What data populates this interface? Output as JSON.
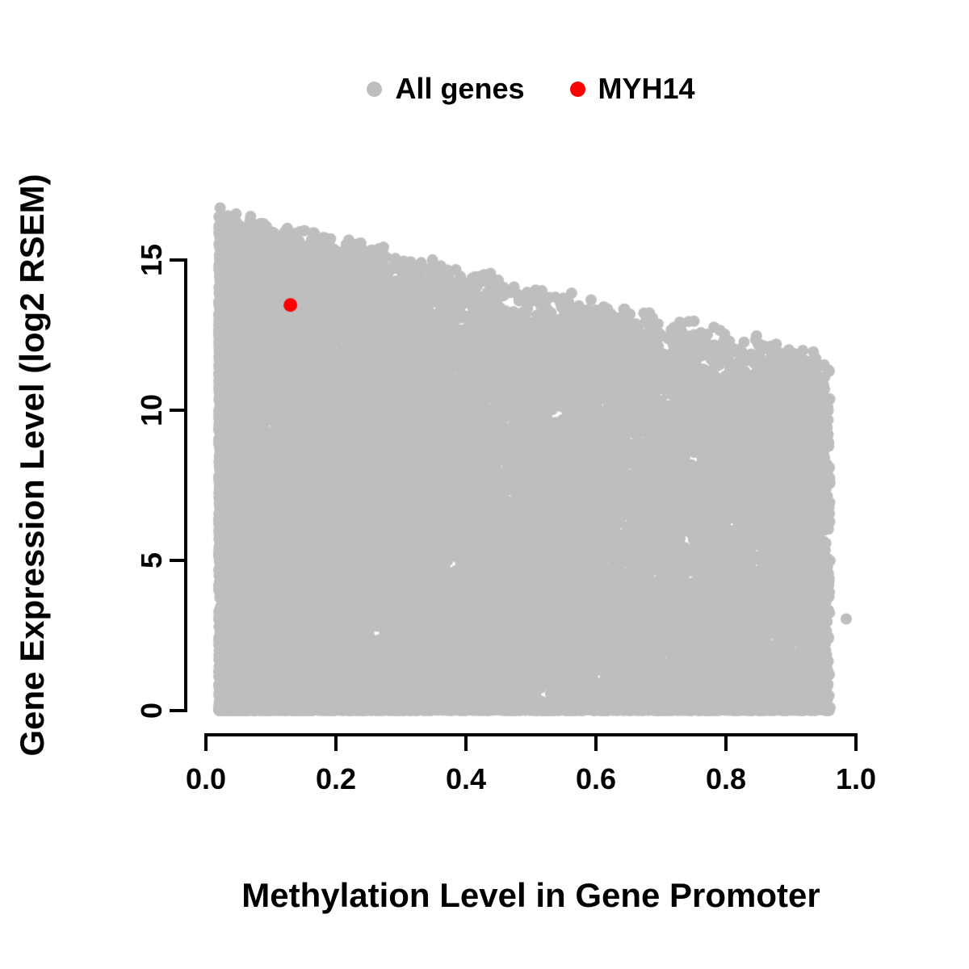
{
  "chart_data": {
    "type": "scatter",
    "title": "",
    "xlabel": "Methylation Level in Gene Promoter",
    "ylabel": "Gene Expression Level (log2 RSEM)",
    "xlim": [
      0,
      1
    ],
    "ylim": [
      0,
      17
    ],
    "grid": false,
    "legend_position": "top-center",
    "axis_color": "#000000",
    "x_ticks": [
      {
        "value": 0.0,
        "label": "0.0"
      },
      {
        "value": 0.2,
        "label": "0.2"
      },
      {
        "value": 0.4,
        "label": "0.4"
      },
      {
        "value": 0.6,
        "label": "0.6"
      },
      {
        "value": 0.8,
        "label": "0.8"
      },
      {
        "value": 1.0,
        "label": "1.0"
      }
    ],
    "y_ticks": [
      {
        "value": 0,
        "label": "0"
      },
      {
        "value": 5,
        "label": "5"
      },
      {
        "value": 10,
        "label": "10"
      },
      {
        "value": 15,
        "label": "15"
      }
    ],
    "legend": [
      {
        "label": "All genes",
        "color": "#BEBEBE"
      },
      {
        "label": "MYH14",
        "color": "#FF0000"
      }
    ],
    "series": [
      {
        "name": "All genes",
        "color": "#BEBEBE",
        "render": "procedural_cloud",
        "cloud": {
          "n": 24000,
          "seed": 42,
          "x_min": 0.02,
          "x_max": 0.96,
          "x_skew": 1.45,
          "upper_envelope_intercept": 16.9,
          "upper_envelope_slope": -5.2,
          "envelope_softness": 0.8,
          "envelope_max_drop": 3.5,
          "zero_expression_fraction": 0.12,
          "zero_band": 0.12,
          "extra_points": [
            [
              0.985,
              3.05
            ]
          ]
        }
      },
      {
        "name": "MYH14",
        "color": "#FF0000",
        "points": [
          [
            0.13,
            13.5
          ]
        ]
      }
    ]
  }
}
